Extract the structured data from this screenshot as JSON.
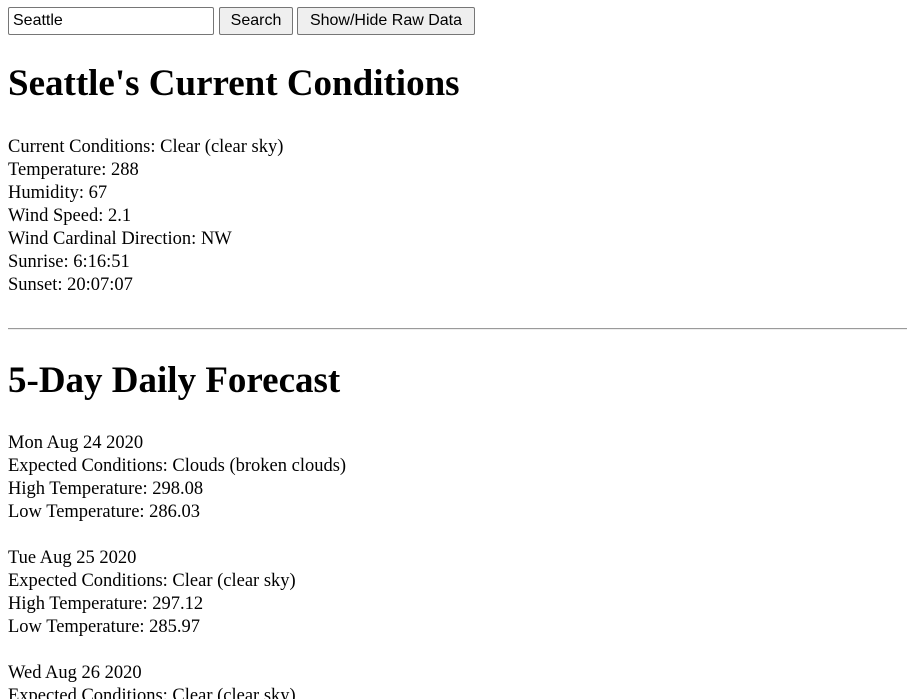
{
  "search": {
    "value": "Seattle",
    "search_label": "Search",
    "toggle_raw_label": "Show/Hide Raw Data"
  },
  "current": {
    "title": "Seattle's Current Conditions",
    "conditions": "Current Conditions: Clear (clear sky)",
    "temperature": "Temperature: 288",
    "humidity": "Humidity: 67",
    "wind_speed": "Wind Speed: 2.1",
    "wind_direction": "Wind Cardinal Direction: NW",
    "sunrise": "Sunrise: 6:16:51",
    "sunset": "Sunset: 20:07:07"
  },
  "forecast": {
    "title": "5-Day Daily Forecast",
    "days": [
      {
        "date": "Mon Aug 24 2020",
        "conditions": "Expected Conditions: Clouds (broken clouds)",
        "high": "High Temperature: 298.08",
        "low": "Low Temperature: 286.03"
      },
      {
        "date": "Tue Aug 25 2020",
        "conditions": "Expected Conditions: Clear (clear sky)",
        "high": "High Temperature: 297.12",
        "low": "Low Temperature: 285.97"
      },
      {
        "date": "Wed Aug 26 2020",
        "conditions": "Expected Conditions: Clear (clear sky)"
      }
    ]
  }
}
